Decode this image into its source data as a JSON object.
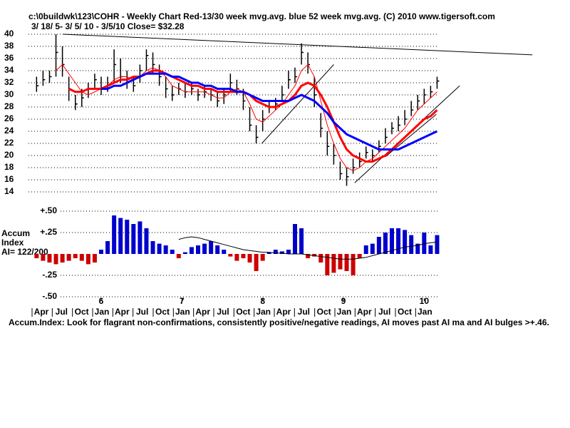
{
  "chart_data": {
    "type": "ohlc",
    "title": "c:\\0buildwk\\123\\COHR  - Weekly Chart  Red-13/30 week mvg.avg.  blue 52 week mvg.avg.  (C) 2010 www.tigersoft.com",
    "subtitle": "3/ 18/ 5- 3/ 5/ 10 - 3/5/10    Close= $32.28",
    "x": [
      2005.2,
      2005.28,
      2005.36,
      2005.44,
      2005.52,
      2005.6,
      2005.68,
      2005.76,
      2005.84,
      2005.92,
      2006.0,
      2006.08,
      2006.16,
      2006.24,
      2006.32,
      2006.4,
      2006.48,
      2006.56,
      2006.64,
      2006.72,
      2006.8,
      2006.88,
      2006.96,
      2007.04,
      2007.12,
      2007.2,
      2007.28,
      2007.36,
      2007.44,
      2007.52,
      2007.6,
      2007.68,
      2007.76,
      2007.84,
      2007.92,
      2008.0,
      2008.08,
      2008.16,
      2008.24,
      2008.32,
      2008.4,
      2008.48,
      2008.56,
      2008.64,
      2008.72,
      2008.8,
      2008.88,
      2008.96,
      2009.04,
      2009.12,
      2009.2,
      2009.28,
      2009.36,
      2009.44,
      2009.52,
      2009.6,
      2009.68,
      2009.76,
      2009.84,
      2009.92,
      2010.0,
      2010.08,
      2010.16
    ],
    "high": [
      33,
      34,
      34,
      40,
      38,
      33,
      30,
      31,
      32,
      33.5,
      33,
      33,
      37.5,
      36,
      34,
      33,
      35,
      37.5,
      37,
      35,
      33,
      31.5,
      32,
      32,
      32,
      31,
      31.5,
      31,
      30.5,
      31,
      33.5,
      32.5,
      31,
      28,
      25,
      27.5,
      29,
      29.5,
      31.5,
      34,
      34.5,
      38.5,
      37,
      33,
      27,
      24,
      22,
      19,
      18,
      19.5,
      20.5,
      21.5,
      21,
      22.5,
      24.5,
      25.5,
      26.5,
      27.5,
      29,
      30,
      31,
      31.5,
      33
    ],
    "low": [
      30.5,
      31.5,
      32,
      33,
      33,
      29,
      27.5,
      28,
      29.5,
      31,
      30,
      30.5,
      32,
      32,
      31,
      30.5,
      32,
      34,
      33.5,
      31.5,
      29.5,
      29,
      30,
      29.5,
      30,
      29,
      29.5,
      29,
      28,
      28.5,
      30.5,
      30,
      27.5,
      24,
      22,
      24,
      27,
      27.5,
      29,
      31,
      32,
      35,
      33.5,
      28,
      23,
      20,
      18.5,
      16,
      15,
      17,
      18,
      19.5,
      19,
      20.5,
      22,
      23.5,
      24,
      25,
      26.5,
      27.5,
      28.5,
      29.5,
      31
    ],
    "close": [
      31.5,
      32.5,
      33,
      37,
      35,
      31,
      28.5,
      29.5,
      31,
      32.5,
      31,
      31.5,
      35,
      33,
      32,
      31.5,
      34,
      36.5,
      35,
      33,
      31,
      30,
      31,
      30.5,
      31,
      30,
      30.5,
      30,
      29,
      30,
      32,
      31,
      29,
      25,
      23,
      26,
      28,
      28.5,
      30,
      32.5,
      33,
      37,
      35,
      30,
      24.5,
      21.5,
      20,
      17,
      16.5,
      18,
      19,
      20.5,
      20,
      21.5,
      23,
      24.5,
      25,
      26,
      27.5,
      29,
      30,
      30.5,
      32.28
    ],
    "bar_color": "#000000",
    "moving_averages": [
      {
        "color": "#ff0000",
        "width": 1,
        "values": [
          null,
          null,
          null,
          34,
          35,
          33.5,
          32,
          30.5,
          30,
          30.5,
          31,
          31.5,
          32.5,
          33,
          33,
          32.5,
          33,
          34,
          34.5,
          34,
          33,
          31.5,
          31,
          30.5,
          30.5,
          30.5,
          30.5,
          30,
          29.5,
          29.5,
          30.5,
          31,
          30.5,
          28.5,
          26,
          25.5,
          26.5,
          27.5,
          28.5,
          30,
          31.5,
          34,
          35,
          33,
          29,
          25,
          22,
          19.5,
          18,
          17.5,
          18,
          19,
          19.5,
          20.5,
          21.5,
          22.5,
          23.5,
          24.5,
          26,
          27.5,
          28.5,
          29.5,
          30.5
        ]
      },
      {
        "color": "#ff0000",
        "width": 3,
        "values": [
          null,
          null,
          null,
          null,
          null,
          31,
          30.5,
          30.5,
          31,
          31,
          31,
          31.5,
          32,
          32.5,
          32.5,
          33,
          33,
          33.5,
          34,
          34,
          33.5,
          33,
          32.5,
          32,
          31.5,
          31.5,
          31,
          31,
          30.5,
          30.5,
          30.5,
          30.5,
          30.5,
          30,
          29,
          28.5,
          28,
          28,
          28.5,
          29,
          30,
          31.5,
          32,
          31.5,
          30,
          28,
          25.5,
          23,
          21,
          20,
          19.5,
          19,
          19,
          19.5,
          20,
          21,
          22,
          23,
          24,
          25,
          26,
          26.5,
          27.5
        ]
      },
      {
        "color": "#0000ff",
        "width": 3,
        "values": [
          null,
          null,
          null,
          null,
          null,
          null,
          null,
          null,
          null,
          null,
          31,
          31,
          31.5,
          31.5,
          32,
          32.5,
          33,
          33.5,
          33.5,
          33.5,
          33.5,
          33,
          33,
          32.5,
          32,
          32,
          31.5,
          31.5,
          31,
          31,
          31,
          30.5,
          30.5,
          30,
          29.5,
          29,
          29,
          29,
          29,
          29,
          29.5,
          30,
          29.5,
          29,
          28,
          27,
          25.5,
          24.5,
          23.5,
          23,
          22.5,
          22,
          21.5,
          21,
          21,
          21,
          21,
          21.5,
          22,
          22.5,
          23,
          23.5,
          24
        ]
      }
    ],
    "trendlines": [
      {
        "x": [
          2005.53,
          2011.34
        ],
        "y": [
          40,
          36.6
        ]
      },
      {
        "x": [
          2007.99,
          2008.88
        ],
        "y": [
          22,
          35
        ]
      },
      {
        "x": [
          2009.14,
          2010.44
        ],
        "y": [
          15.5,
          31.5
        ]
      },
      {
        "x": [
          2009.52,
          2010.15
        ],
        "y": [
          19.8,
          26.8
        ]
      }
    ],
    "xlim": [
      2005.1,
      2010.2
    ],
    "ylim": [
      14,
      40
    ],
    "yticks": [
      14,
      16,
      18,
      20,
      22,
      24,
      26,
      28,
      30,
      32,
      34,
      36,
      38,
      40
    ],
    "grid": true,
    "year_ticks": [
      {
        "value": 2006,
        "label": "6"
      },
      {
        "value": 2007,
        "label": "7"
      },
      {
        "value": 2008,
        "label": "8"
      },
      {
        "value": 2009,
        "label": "9"
      },
      {
        "value": 2010,
        "label": "10"
      }
    ],
    "month_ticks": [
      {
        "value": 2005.25,
        "label": "Apr"
      },
      {
        "value": 2005.5,
        "label": "Jul"
      },
      {
        "value": 2005.75,
        "label": "Oct"
      },
      {
        "value": 2006,
        "label": "Jan"
      },
      {
        "value": 2006.25,
        "label": "Apr"
      },
      {
        "value": 2006.5,
        "label": "Jul"
      },
      {
        "value": 2006.75,
        "label": "Oct"
      },
      {
        "value": 2007,
        "label": "Jan"
      },
      {
        "value": 2007.25,
        "label": "Apr"
      },
      {
        "value": 2007.5,
        "label": "Jul"
      },
      {
        "value": 2007.75,
        "label": "Oct"
      },
      {
        "value": 2008,
        "label": "Jan"
      },
      {
        "value": 2008.25,
        "label": "Apr"
      },
      {
        "value": 2008.5,
        "label": "Jul"
      },
      {
        "value": 2008.75,
        "label": "Oct"
      },
      {
        "value": 2009,
        "label": "Jan"
      },
      {
        "value": 2009.25,
        "label": "Apr"
      },
      {
        "value": 2009.5,
        "label": "Jul"
      },
      {
        "value": 2009.75,
        "label": "Oct"
      },
      {
        "value": 2010,
        "label": "Jan"
      }
    ],
    "accum": {
      "label_lines": [
        "Accum",
        "Index",
        "AI= 122/200"
      ],
      "values": [
        -0.05,
        -0.08,
        -0.1,
        -0.12,
        -0.1,
        -0.08,
        -0.05,
        -0.08,
        -0.12,
        -0.1,
        0.05,
        0.15,
        0.45,
        0.42,
        0.4,
        0.35,
        0.38,
        0.3,
        0.15,
        0.12,
        0.1,
        0.05,
        -0.05,
        0.02,
        0.08,
        0.1,
        0.12,
        0.15,
        0.1,
        0.05,
        -0.03,
        -0.08,
        -0.05,
        -0.1,
        -0.2,
        -0.08,
        0.02,
        0.05,
        0.03,
        0.05,
        0.35,
        0.3,
        -0.05,
        -0.03,
        -0.1,
        -0.25,
        -0.22,
        -0.18,
        -0.2,
        -0.25,
        -0.05,
        0.1,
        0.12,
        0.2,
        0.25,
        0.3,
        0.3,
        0.28,
        0.22,
        0.12,
        0.25,
        0.1,
        0.22
      ],
      "ma": [
        null,
        null,
        null,
        null,
        null,
        null,
        null,
        null,
        null,
        null,
        null,
        null,
        null,
        null,
        null,
        null,
        null,
        null,
        null,
        null,
        null,
        null,
        0.17,
        0.19,
        0.2,
        0.19,
        0.17,
        0.15,
        0.13,
        0.11,
        0.09,
        0.07,
        0.05,
        0.04,
        0.03,
        0.02,
        0.02,
        0.01,
        0.01,
        0,
        0,
        0,
        -0.01,
        -0.02,
        -0.03,
        -0.04,
        -0.05,
        -0.06,
        -0.06,
        -0.06,
        -0.05,
        -0.04,
        -0.02,
        0,
        0.02,
        0.04,
        0.06,
        0.08,
        0.09,
        0.1,
        0.12,
        0.13,
        0.14
      ],
      "positive_color": "#0000cc",
      "negative_color": "#cc0000",
      "ma_color": "#000000",
      "ylim": [
        -0.5,
        0.5
      ],
      "yticks": [
        {
          "value": 0.5,
          "label": "+.50"
        },
        {
          "value": 0.25,
          "label": "+.25"
        },
        {
          "value": -0.25,
          "label": "-.25"
        },
        {
          "value": -0.5,
          "label": "-.50"
        }
      ]
    },
    "footer": "Accum.Index: Look for flagrant non-confirmations, consistently positive/negative readings, AI moves past AI ma and AI bulges >+.46."
  }
}
